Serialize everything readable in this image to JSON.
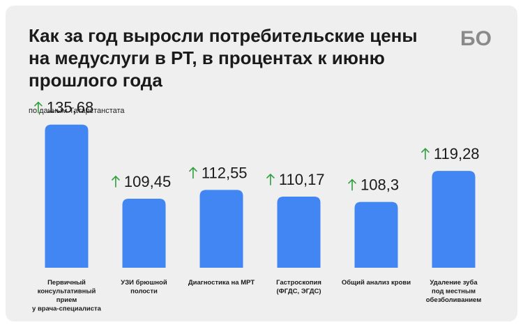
{
  "title": "Как за год выросли потребительские цены на медуслуги в РТ, в процентах к июню прошлого года",
  "subtitle": "по данным Татарстанстата",
  "logo_text": "БО",
  "colors": {
    "bar": "#4286f4",
    "arrow": "#2e9e3c",
    "background": "#efefef",
    "text": "#1a1a1a"
  },
  "icons": {
    "value_marker": "up-arrow-icon"
  },
  "chart_data": {
    "type": "bar",
    "categories": [
      "Первичный консультативный прием у врача-специалиста",
      "УЗИ брюшной полости",
      "Диагностика на МРТ",
      "Гастроскопия (ФГДС, ЭГДС)",
      "Общий анализ крови",
      "Удаление зуба под местным обезболиванием"
    ],
    "category_lines": [
      [
        "Первичный",
        "консультативный",
        "прием",
        "у врача-специалиста"
      ],
      [
        "УЗИ брюшной",
        "полости"
      ],
      [
        "Диагностика на МРТ"
      ],
      [
        "Гастроскопия",
        "(ФГДС, ЭГДС)"
      ],
      [
        "Общий анализ крови"
      ],
      [
        "Удаление зуба",
        "под местным",
        "обезболиванием"
      ]
    ],
    "values": [
      135.68,
      109.45,
      112.55,
      110.17,
      108.3,
      119.28
    ],
    "value_labels": [
      "135,68",
      "109,45",
      "112,55",
      "110,17",
      "108,3",
      "119,28"
    ],
    "title": "Как за год выросли потребительские цены на медуслуги в РТ, в процентах к июню прошлого года",
    "xlabel": "",
    "ylabel": "",
    "ylim": [
      85,
      136
    ],
    "grid": false,
    "legend": "none"
  }
}
